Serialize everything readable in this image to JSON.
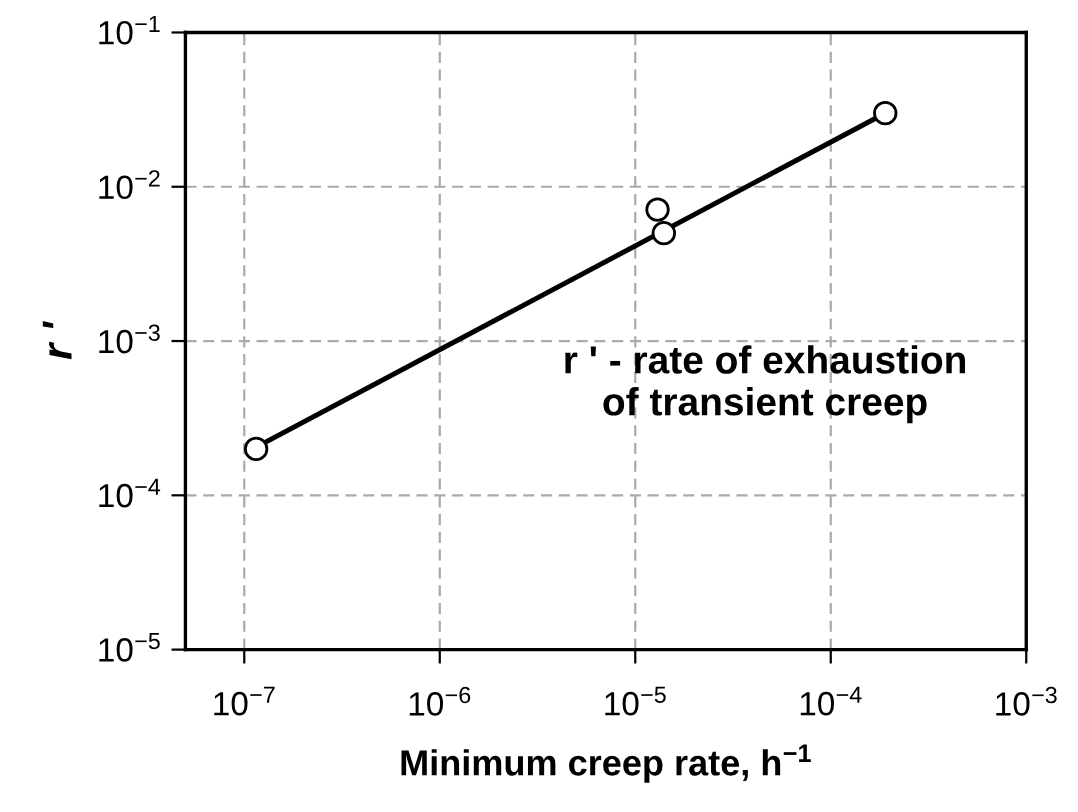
{
  "chart_data": {
    "type": "scatter",
    "xlabel": "Minimum creep rate, h$^{−1}$",
    "ylabel": "r '",
    "log": "xy",
    "grid": true,
    "legend": false,
    "xlim": [
      5e-08,
      0.001
    ],
    "ylim": [
      1e-05,
      0.1
    ],
    "xticks": [
      {
        "value": 1e-07,
        "label": "10$^{−7}$"
      },
      {
        "value": 1e-06,
        "label": "10$^{−6}$"
      },
      {
        "value": 1e-05,
        "label": "10$^{−5}$"
      },
      {
        "value": 0.0001,
        "label": "10$^{−4}$"
      },
      {
        "value": 0.001,
        "label": "10$^{−3}$"
      }
    ],
    "yticks": [
      {
        "value": 1e-05,
        "label": "10$^{−5}$"
      },
      {
        "value": 0.0001,
        "label": "10$^{−4}$"
      },
      {
        "value": 0.001,
        "label": "10$^{−3}$"
      },
      {
        "value": 0.01,
        "label": "10$^{−2}$"
      },
      {
        "value": 0.1,
        "label": "10$^{−1}$"
      }
    ],
    "annotations": [
      "r ' - rate of exhaustion\nof transient creep"
    ],
    "series": [
      {
        "color": "#000000",
        "marker": "circle",
        "x": [
          1.15e-07,
          1.3e-05,
          1.4e-05,
          0.00019
        ],
        "values": [
          0.0002,
          0.0071,
          0.005,
          0.03
        ]
      },
      {
        "type": "line",
        "color": "#000000",
        "marker": "none",
        "line_style": "solid",
        "x": [
          1.15e-07,
          0.00019
        ],
        "values": [
          0.000205,
          0.03
        ]
      }
    ]
  }
}
